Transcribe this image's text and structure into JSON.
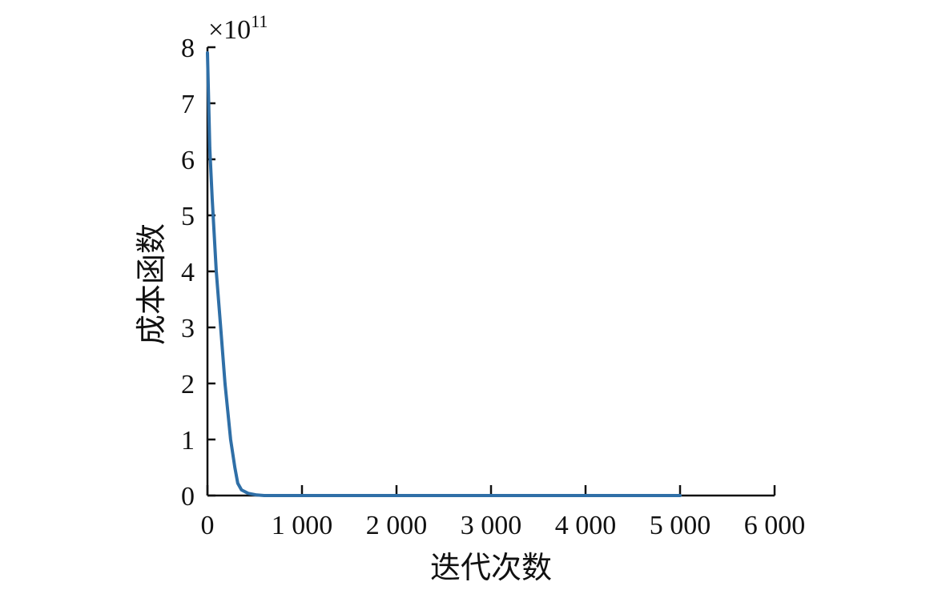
{
  "chart_data": {
    "type": "line",
    "title": "",
    "xlabel": "迭代次数",
    "ylabel": "成本函数",
    "y_multiplier_label": "×10",
    "y_multiplier_exponent": "11",
    "xlim": [
      0,
      6000
    ],
    "ylim": [
      0,
      8
    ],
    "x_ticks": [
      0,
      1000,
      2000,
      3000,
      4000,
      5000,
      6000
    ],
    "x_tick_labels": [
      "0",
      "1 000",
      "2 000",
      "3 000",
      "4 000",
      "5 000",
      "6 000"
    ],
    "y_ticks": [
      0,
      1,
      2,
      3,
      4,
      5,
      6,
      7,
      8
    ],
    "y_tick_labels": [
      "0",
      "1",
      "2",
      "3",
      "4",
      "5",
      "6",
      "7",
      "8"
    ],
    "grid": false,
    "line_color": "#2f6fa7",
    "series": [
      {
        "x": [
          0,
          10,
          25,
          50,
          93,
          140,
          186,
          245,
          290,
          320,
          360,
          430,
          520,
          600,
          1000,
          2000,
          3000,
          4000,
          5000
        ],
        "y": [
          7.9,
          7.2,
          6.2,
          5.3,
          4.0,
          3.0,
          2.0,
          1.0,
          0.5,
          0.22,
          0.1,
          0.04,
          0.01,
          0,
          0,
          0,
          0,
          0,
          0
        ]
      }
    ]
  }
}
